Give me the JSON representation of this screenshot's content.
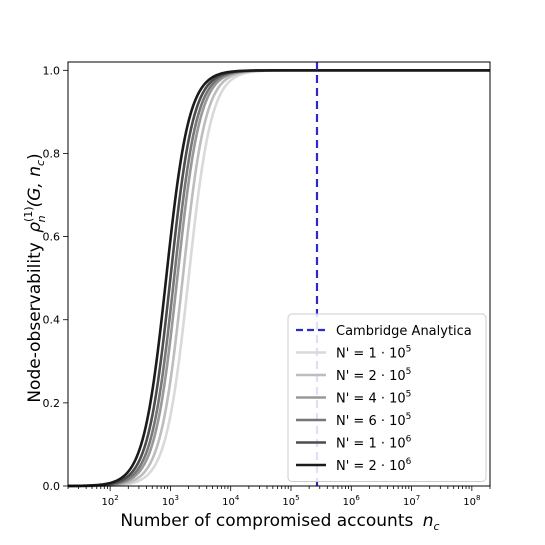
{
  "chart_data": {
    "type": "line",
    "title": "",
    "xlabel": "Number of compromised accounts",
    "xlabel_var": "n",
    "xlabel_var_sub": "c",
    "ylabel": "Node-observability",
    "ylabel_symbol": "ρ",
    "ylabel_sup": "(1)",
    "ylabel_sub": "n",
    "ylabel_args": "(G, n",
    "ylabel_args_sub": "c",
    "ylabel_args_close": ")",
    "xscale": "log",
    "xlim": [
      20,
      200000000
    ],
    "ylim": [
      0,
      1.02
    ],
    "xticks": [
      {
        "value": 100,
        "base": "10",
        "exp": "2"
      },
      {
        "value": 1000,
        "base": "10",
        "exp": "3"
      },
      {
        "value": 10000,
        "base": "10",
        "exp": "4"
      },
      {
        "value": 100000,
        "base": "10",
        "exp": "5"
      },
      {
        "value": 1000000,
        "base": "10",
        "exp": "6"
      },
      {
        "value": 10000000,
        "base": "10",
        "exp": "7"
      },
      {
        "value": 100000000,
        "base": "10",
        "exp": "8"
      }
    ],
    "yticks": [
      {
        "value": 0.0,
        "label": "0.0"
      },
      {
        "value": 0.2,
        "label": "0.2"
      },
      {
        "value": 0.4,
        "label": "0.4"
      },
      {
        "value": 0.6,
        "label": "0.6"
      },
      {
        "value": 0.8,
        "label": "0.8"
      },
      {
        "value": 1.0,
        "label": "1.0"
      }
    ],
    "vline": {
      "name": "Cambridge Analytica",
      "x": 270000,
      "color": "#2b2bc8",
      "style": "dashed"
    },
    "legend_position": "lower-right",
    "series": [
      {
        "name": "N' = 1 · 10",
        "name_exp": "5",
        "midpoint": 2000,
        "color": "#d9d9d9",
        "x": [
          20,
          100,
          300,
          1000,
          2000,
          5000,
          10000,
          20000,
          50000,
          200000000
        ],
        "y": [
          0.01,
          0.05,
          0.15,
          0.39,
          0.6,
          0.88,
          0.97,
          0.995,
          1.0,
          1.0
        ]
      },
      {
        "name": "N' = 2 · 10",
        "name_exp": "5",
        "midpoint": 1600,
        "color": "#bdbdbd",
        "x": [
          20,
          100,
          300,
          1000,
          1600,
          5000,
          10000,
          20000,
          50000,
          200000000
        ],
        "y": [
          0.012,
          0.06,
          0.18,
          0.44,
          0.6,
          0.91,
          0.98,
          0.997,
          1.0,
          1.0
        ]
      },
      {
        "name": "N' = 4 · 10",
        "name_exp": "5",
        "midpoint": 1300,
        "color": "#999999",
        "x": [
          20,
          100,
          300,
          1000,
          1300,
          5000,
          10000,
          20000,
          50000,
          200000000
        ],
        "y": [
          0.014,
          0.07,
          0.21,
          0.5,
          0.6,
          0.94,
          0.99,
          0.998,
          1.0,
          1.0
        ]
      },
      {
        "name": "N' = 6 · 10",
        "name_exp": "5",
        "midpoint": 1150,
        "color": "#777777",
        "x": [
          20,
          100,
          300,
          1000,
          1150,
          5000,
          10000,
          20000,
          50000,
          200000000
        ],
        "y": [
          0.016,
          0.08,
          0.23,
          0.55,
          0.6,
          0.95,
          0.99,
          0.999,
          1.0,
          1.0
        ]
      },
      {
        "name": "N' = 1 · 10",
        "name_exp": "6",
        "midpoint": 1000,
        "color": "#4d4d4d",
        "x": [
          20,
          100,
          300,
          1000,
          5000,
          10000,
          20000,
          50000,
          200000000
        ],
        "y": [
          0.018,
          0.09,
          0.25,
          0.6,
          0.96,
          0.995,
          1.0,
          1.0,
          1.0
        ]
      },
      {
        "name": "N' = 2 · 10",
        "name_exp": "6",
        "midpoint": 850,
        "color": "#1a1a1a",
        "x": [
          20,
          100,
          300,
          850,
          5000,
          10000,
          20000,
          50000,
          200000000
        ],
        "y": [
          0.02,
          0.1,
          0.28,
          0.6,
          0.97,
          0.997,
          1.0,
          1.0,
          1.0
        ]
      }
    ]
  }
}
